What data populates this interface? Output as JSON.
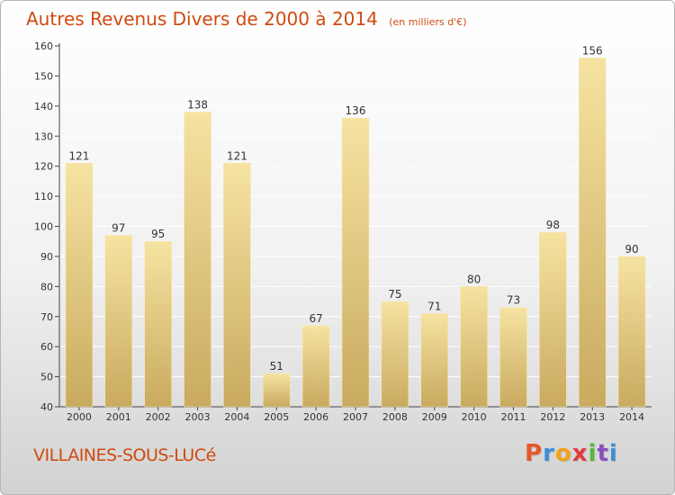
{
  "header": {
    "title": "Autres Revenus Divers de 2000 à 2014",
    "subtitle": "(en milliers d'€)"
  },
  "footer": {
    "commune": "VILLAINES-SOUS-LUCé",
    "brand": "Proxiti",
    "brand_colors": [
      "#e8572a",
      "#3a8fd8",
      "#f1a21b",
      "#e23b3b",
      "#5bb63c",
      "#8a4fbf",
      "#3a8fd8"
    ]
  },
  "colors": {
    "bar_light": "#f6e3a1",
    "bar_dark": "#c9aa5f",
    "axis": "#444444",
    "grid": "#ffffff",
    "title": "#d04a10"
  },
  "chart_data": {
    "type": "bar",
    "title": "Autres Revenus Divers de 2000 à 2014",
    "subtitle": "(en milliers d'€)",
    "categories": [
      "2000",
      "2001",
      "2002",
      "2003",
      "2004",
      "2005",
      "2006",
      "2007",
      "2008",
      "2009",
      "2010",
      "2011",
      "2012",
      "2013",
      "2014"
    ],
    "values": [
      121,
      97,
      95,
      138,
      121,
      51,
      67,
      136,
      75,
      71,
      80,
      73,
      98,
      156,
      90
    ],
    "ylim": [
      40,
      160
    ],
    "yticks": [
      40,
      50,
      60,
      70,
      80,
      90,
      100,
      110,
      120,
      130,
      140,
      150,
      160
    ],
    "grid": true,
    "legend": false
  }
}
